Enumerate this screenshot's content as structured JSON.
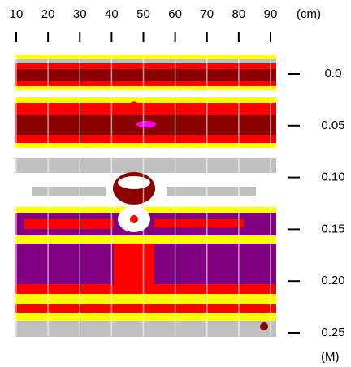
{
  "chart_data": {
    "type": "radargram",
    "x_label": "(cm)",
    "y_label": "(M)",
    "xlim": [
      10,
      90
    ],
    "xticks": [
      10,
      20,
      30,
      40,
      50,
      60,
      70,
      80,
      90
    ],
    "ylim": [
      0,
      0.25
    ],
    "yticks": [
      {
        "value": 0,
        "label": "0.0"
      },
      0.05,
      {
        "value": 0.1,
        "label": "0.10"
      },
      0.15,
      {
        "value": 0.2,
        "label": "0.20"
      },
      0.25
    ]
  }
}
